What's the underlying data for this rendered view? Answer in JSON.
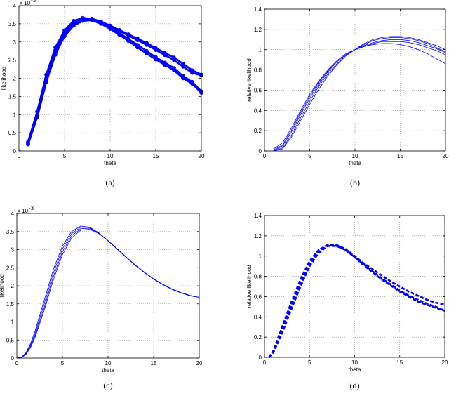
{
  "chart_data": [
    {
      "type": "line",
      "panel_label": "(a)",
      "exponent_label": "x 10",
      "exponent_power": "-3",
      "xlabel": "theta",
      "ylabel": "likelihood",
      "xlim": [
        0,
        20
      ],
      "ylim": [
        0,
        0.004
      ],
      "xticks": [
        "0",
        "5",
        "10",
        "15",
        "20"
      ],
      "yticks": [
        "0",
        "0.5",
        "1",
        "1.5",
        "2",
        "2.5",
        "3",
        "3.5",
        "4"
      ],
      "grid": true,
      "style": "thick-with-markers",
      "color": "#0000ff",
      "x": [
        1,
        2,
        3,
        4,
        5,
        6,
        7,
        8,
        9,
        10,
        11,
        12,
        13,
        14,
        15,
        16,
        17,
        18,
        19,
        20
      ],
      "series": [
        {
          "values": [
            0.00018,
            0.00092,
            0.0019,
            0.00265,
            0.00316,
            0.00345,
            0.00358,
            0.0036,
            0.0035,
            0.00336,
            0.0032,
            0.00303,
            0.00285,
            0.00268,
            0.00252,
            0.00237,
            0.00222,
            0.002,
            0.00185,
            0.0016
          ]
        },
        {
          "values": [
            0.0002,
            0.00095,
            0.00195,
            0.00272,
            0.00322,
            0.0035,
            0.00362,
            0.00362,
            0.00353,
            0.0034,
            0.00325,
            0.00308,
            0.00292,
            0.00275,
            0.00258,
            0.00243,
            0.00228,
            0.00206,
            0.0019,
            0.00164
          ]
        },
        {
          "values": [
            0.00022,
            0.001,
            0.002,
            0.00278,
            0.00328,
            0.00355,
            0.00365,
            0.00363,
            0.00355,
            0.00343,
            0.0033,
            0.00318,
            0.00305,
            0.00292,
            0.00278,
            0.00264,
            0.0025,
            0.00232,
            0.00215,
            0.00208
          ]
        },
        {
          "values": [
            0.00025,
            0.00108,
            0.0021,
            0.00285,
            0.00332,
            0.00358,
            0.00366,
            0.00364,
            0.00356,
            0.00345,
            0.00333,
            0.00321,
            0.00309,
            0.00297,
            0.00283,
            0.0027,
            0.00257,
            0.0024,
            0.00222,
            0.0021
          ]
        }
      ]
    },
    {
      "type": "line",
      "panel_label": "(b)",
      "xlabel": "theta",
      "ylabel": "relative likelihood",
      "xlim": [
        0,
        20
      ],
      "ylim": [
        0,
        1.4
      ],
      "xticks": [
        "0",
        "5",
        "10",
        "15",
        "20"
      ],
      "yticks": [
        "0",
        "0.2",
        "0.4",
        "0.6",
        "0.8",
        "1",
        "1.2",
        "1.4"
      ],
      "grid": true,
      "style": "thin",
      "color": "#0000ff",
      "x": [
        1,
        2,
        3,
        4,
        5,
        6,
        7,
        8,
        9,
        10,
        11,
        12,
        13,
        14,
        15,
        16,
        17,
        18,
        19,
        20
      ],
      "series": [
        {
          "values": [
            0.0,
            0.02,
            0.14,
            0.3,
            0.46,
            0.61,
            0.74,
            0.85,
            0.94,
            1.0,
            1.05,
            1.09,
            1.11,
            1.12,
            1.12,
            1.11,
            1.09,
            1.06,
            1.02,
            0.98
          ]
        },
        {
          "values": [
            0.0,
            0.05,
            0.19,
            0.36,
            0.52,
            0.66,
            0.78,
            0.88,
            0.95,
            1.0,
            1.04,
            1.07,
            1.09,
            1.1,
            1.1,
            1.09,
            1.07,
            1.04,
            1.01,
            0.97
          ]
        },
        {
          "values": [
            0.02,
            0.08,
            0.23,
            0.4,
            0.56,
            0.69,
            0.8,
            0.89,
            0.96,
            1.0,
            1.03,
            1.06,
            1.08,
            1.08,
            1.08,
            1.07,
            1.05,
            1.02,
            0.99,
            0.95
          ]
        },
        {
          "values": [
            0.0,
            0.03,
            0.16,
            0.33,
            0.49,
            0.64,
            0.76,
            0.86,
            0.94,
            1.0,
            1.06,
            1.1,
            1.12,
            1.13,
            1.13,
            1.12,
            1.1,
            1.07,
            1.04,
            1.0
          ]
        },
        {
          "values": [
            0.01,
            0.06,
            0.21,
            0.38,
            0.54,
            0.68,
            0.79,
            0.88,
            0.95,
            1.0,
            1.03,
            1.05,
            1.06,
            1.06,
            1.05,
            1.03,
            1.0,
            0.96,
            0.91,
            0.86
          ]
        }
      ]
    },
    {
      "type": "line",
      "panel_label": "(c)",
      "exponent_label": "x 10",
      "exponent_power": "-3",
      "xlabel": "theta",
      "ylabel": "likelihood",
      "xlim": [
        0,
        20
      ],
      "ylim": [
        0,
        0.004
      ],
      "xticks": [
        "0",
        "5",
        "10",
        "15",
        "20"
      ],
      "yticks": [
        "0",
        "0.5",
        "1",
        "1.5",
        "2",
        "2.5",
        "3",
        "3.5",
        "4"
      ],
      "grid": true,
      "style": "thin",
      "color": "#0000ff",
      "x": [
        0,
        0.5,
        1,
        1.5,
        2,
        3,
        4,
        5,
        6,
        7,
        8,
        9,
        10,
        11,
        12,
        13,
        14,
        15,
        16,
        17,
        18,
        19,
        20
      ],
      "series": [
        {
          "values": [
            0,
            2e-05,
            0.00015,
            0.0004,
            0.00075,
            0.0016,
            0.00245,
            0.0031,
            0.0035,
            0.00365,
            0.00362,
            0.00346,
            0.00324,
            0.00301,
            0.00278,
            0.00256,
            0.00236,
            0.00218,
            0.00203,
            0.0019,
            0.0018,
            0.00172,
            0.00168
          ]
        },
        {
          "values": [
            0,
            2e-05,
            0.00013,
            0.00036,
            0.00068,
            0.0015,
            0.00235,
            0.00302,
            0.00344,
            0.00362,
            0.00361,
            0.00346,
            0.00325,
            0.00302,
            0.00279,
            0.00257,
            0.00237,
            0.00219,
            0.00204,
            0.00191,
            0.00181,
            0.00173,
            0.00168
          ]
        },
        {
          "values": [
            0,
            1e-05,
            0.00011,
            0.00032,
            0.00062,
            0.0014,
            0.00225,
            0.00294,
            0.00338,
            0.00358,
            0.00359,
            0.00345,
            0.00325,
            0.00302,
            0.00279,
            0.00257,
            0.00237,
            0.00219,
            0.00204,
            0.00191,
            0.00181,
            0.00173,
            0.00168
          ]
        },
        {
          "values": [
            0,
            1e-05,
            0.0001,
            0.00029,
            0.00057,
            0.00132,
            0.00216,
            0.00286,
            0.00332,
            0.00354,
            0.00356,
            0.00344,
            0.00325,
            0.00302,
            0.00279,
            0.00257,
            0.00237,
            0.00219,
            0.00204,
            0.00191,
            0.00181,
            0.00173,
            0.00168
          ]
        }
      ]
    },
    {
      "type": "line",
      "panel_label": "(d)",
      "xlabel": "theta",
      "ylabel": "relative likelihood",
      "xlim": [
        0,
        20
      ],
      "ylim": [
        0,
        1.4
      ],
      "xticks": [
        "0",
        "5",
        "10",
        "15",
        "20"
      ],
      "yticks": [
        "0",
        "0.2",
        "0.4",
        "0.6",
        "0.8",
        "1",
        "1.2",
        "1.4"
      ],
      "grid": true,
      "style": "thick-dashed",
      "color": "#0000ff",
      "x": [
        0.5,
        1,
        2,
        3,
        4,
        5,
        6,
        7,
        8,
        9,
        10,
        11,
        12,
        13,
        14,
        15,
        16,
        17,
        18,
        19,
        20
      ],
      "series": [
        {
          "values": [
            0.0,
            0.05,
            0.25,
            0.48,
            0.7,
            0.9,
            1.03,
            1.1,
            1.1,
            1.06,
            0.99,
            0.92,
            0.85,
            0.78,
            0.72,
            0.66,
            0.61,
            0.57,
            0.53,
            0.5,
            0.46
          ]
        },
        {
          "values": [
            0.0,
            0.06,
            0.28,
            0.52,
            0.74,
            0.93,
            1.05,
            1.11,
            1.11,
            1.07,
            1.0,
            0.93,
            0.87,
            0.81,
            0.75,
            0.7,
            0.65,
            0.61,
            0.57,
            0.54,
            0.52
          ]
        },
        {
          "values": [
            0.0,
            0.07,
            0.31,
            0.55,
            0.77,
            0.95,
            1.06,
            1.11,
            1.1,
            1.06,
            0.99,
            0.91,
            0.84,
            0.77,
            0.71,
            0.65,
            0.6,
            0.55,
            0.52,
            0.49,
            0.46
          ]
        }
      ]
    }
  ]
}
